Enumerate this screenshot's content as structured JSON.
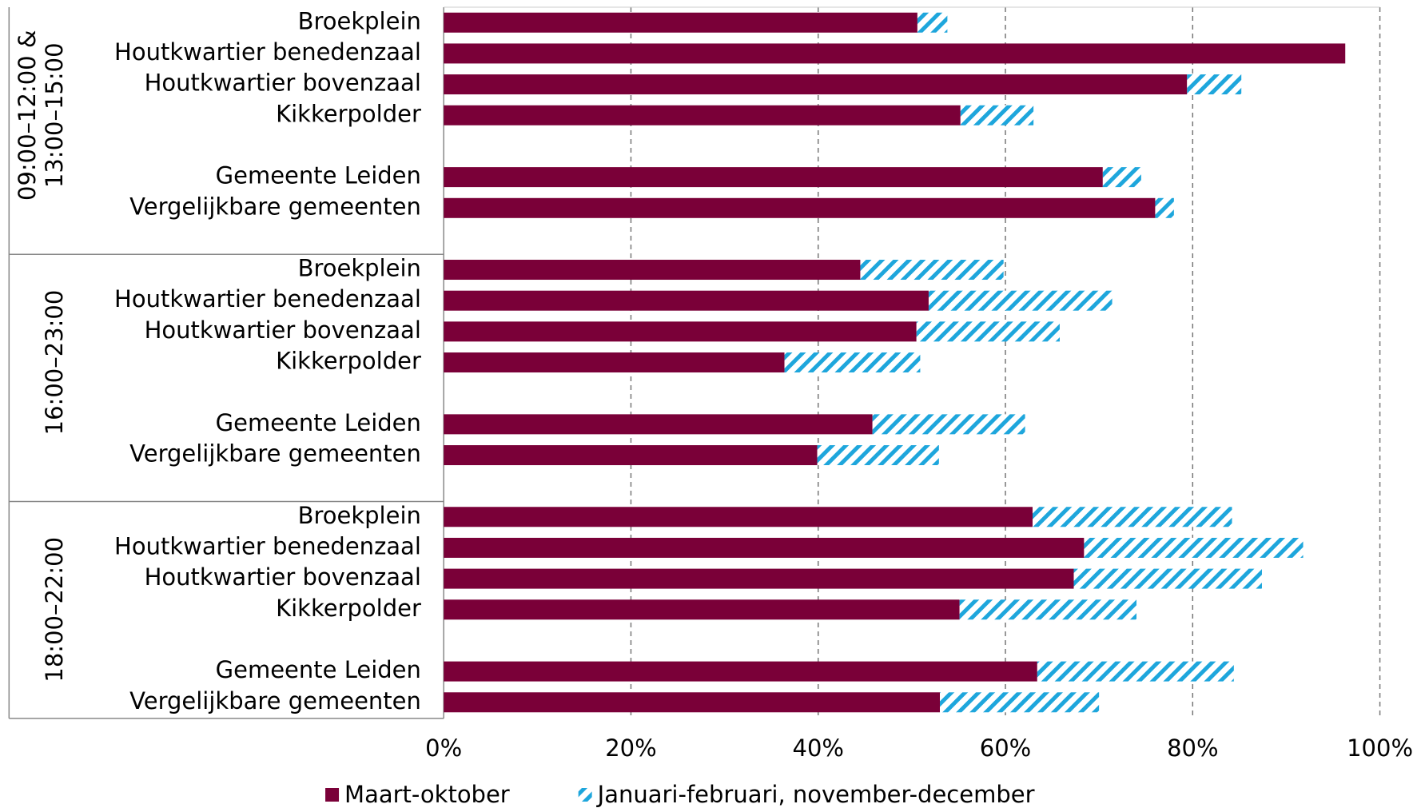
{
  "chart_data": {
    "type": "bar",
    "orientation": "horizontal",
    "stacked": true,
    "groups": [
      [
        "09:00–12:00 &",
        "13:00–15:00"
      ],
      [
        "16:00–23:00"
      ],
      [
        "18:00–22:00"
      ]
    ],
    "categories": [
      "Broekplein",
      "Houtkwartier benedenzaal",
      "Houtkwartier bovenzaal",
      "Kikkerpolder",
      null,
      "Gemeente Leiden",
      "Vergelijkbare gemeenten",
      "Broekplein",
      "Houtkwartier benedenzaal",
      "Houtkwartier bovenzaal",
      "Kikkerpolder",
      null,
      "Gemeente Leiden",
      "Vergelijkbare gemeenten",
      "Broekplein",
      "Houtkwartier benedenzaal",
      "Houtkwartier bovenzaal",
      "Kikkerpolder",
      null,
      "Gemeente Leiden",
      "Vergelijkbare gemeenten"
    ],
    "series": [
      {
        "name": "Maart-oktober",
        "color": "#7a0038",
        "pattern": "solid",
        "values": [
          50.6,
          96.3,
          79.4,
          55.2,
          null,
          70.4,
          76.0,
          44.5,
          51.8,
          50.5,
          36.4,
          null,
          45.8,
          39.9,
          62.9,
          68.4,
          67.3,
          55.1,
          null,
          63.4,
          53.0
        ]
      },
      {
        "name": "Januari-februari, november-december",
        "color": "#1ea6dc",
        "pattern": "hatch",
        "values": [
          3.2,
          0,
          5.8,
          7.8,
          null,
          4.1,
          2.0,
          15.3,
          19.6,
          15.3,
          14.5,
          null,
          16.3,
          13.0,
          21.3,
          23.4,
          20.1,
          18.9,
          null,
          21.0,
          17.0
        ]
      }
    ],
    "xlim": [
      0,
      100
    ],
    "xticks": [
      {
        "value": 0,
        "label": "0%"
      },
      {
        "value": 20,
        "label": "20%"
      },
      {
        "value": 40,
        "label": "40%"
      },
      {
        "value": 60,
        "label": "60%"
      },
      {
        "value": 80,
        "label": "80%"
      },
      {
        "value": 100,
        "label": "100%"
      }
    ],
    "grid": true,
    "legend": "bottom"
  }
}
